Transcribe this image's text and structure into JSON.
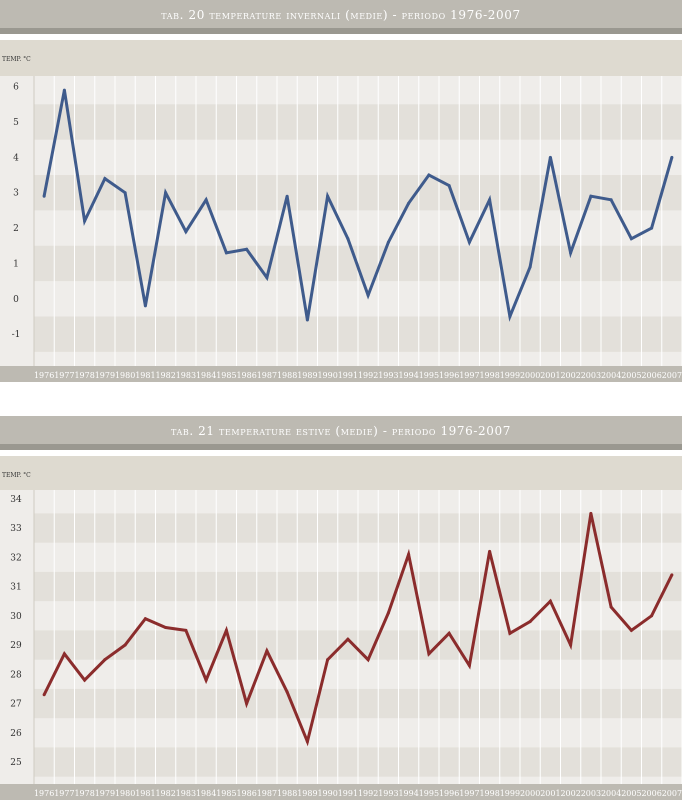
{
  "charts": [
    {
      "title": "TAB. 20  TEMPERATURE INVERNALI (MEDIE) - PERIODO 1976-2007",
      "unit_label": "TEMP. °C"
    },
    {
      "title": "TAB. 21  TEMPERATURE ESTIVE (MEDIE) - PERIODO 1976-2007",
      "unit_label": "TEMP. °C"
    }
  ],
  "colors": {
    "winter_line": "#3f5b8c",
    "summer_line": "#8b2c2c",
    "band_dark": "#e3e0da",
    "band_light": "#efedea",
    "grid": "#ffffff",
    "axis_bar": "#bdbab2"
  },
  "chart_data": [
    {
      "type": "line",
      "title": "TAB. 20  TEMPERATURE INVERNALI (MEDIE) - PERIODO 1976-2007",
      "ylabel": "TEMP. °C",
      "xlabel": "",
      "ylim": [
        -1.9,
        6.3
      ],
      "yticks": [
        6,
        5,
        4,
        3,
        2,
        1,
        0,
        -1
      ],
      "grid": true,
      "categories": [
        "1976",
        "1977",
        "1978",
        "1979",
        "1980",
        "1981",
        "1982",
        "1983",
        "1984",
        "1985",
        "1986",
        "1987",
        "1988",
        "1989",
        "1990",
        "1991",
        "1992",
        "1993",
        "1994",
        "1995",
        "1996",
        "1997",
        "1998",
        "1999",
        "2000",
        "2001",
        "2002",
        "2003",
        "2004",
        "2005",
        "2006",
        "2007"
      ],
      "series": [
        {
          "values": [
            2.9,
            5.9,
            2.2,
            3.4,
            3.0,
            -0.2,
            3.0,
            1.9,
            2.8,
            1.3,
            1.4,
            0.6,
            2.9,
            -0.6,
            2.9,
            1.7,
            0.1,
            1.6,
            2.7,
            3.5,
            3.2,
            1.6,
            2.8,
            -0.5,
            0.9,
            4.0,
            1.3,
            2.9,
            2.8,
            1.7,
            2.0,
            4.0
          ]
        }
      ]
    },
    {
      "type": "line",
      "title": "TAB. 21  TEMPERATURE ESTIVE (MEDIE) - PERIODO 1976-2007",
      "ylabel": "TEMP. °C",
      "xlabel": "",
      "ylim": [
        24.25,
        34.3
      ],
      "yticks": [
        34,
        33,
        32,
        31,
        30,
        29,
        28,
        27,
        26,
        25
      ],
      "grid": true,
      "categories": [
        "1976",
        "1977",
        "1978",
        "1979",
        "1980",
        "1981",
        "1982",
        "1983",
        "1984",
        "1985",
        "1986",
        "1987",
        "1988",
        "1989",
        "1990",
        "1991",
        "1992",
        "1993",
        "1994",
        "1995",
        "1996",
        "1997",
        "1998",
        "1999",
        "2000",
        "2001",
        "2002",
        "2003",
        "2004",
        "2005",
        "2006",
        "2007"
      ],
      "series": [
        {
          "values": [
            27.3,
            28.7,
            27.8,
            28.5,
            29.0,
            29.9,
            29.6,
            29.5,
            27.8,
            29.5,
            27.0,
            28.8,
            27.4,
            25.7,
            28.5,
            29.2,
            28.5,
            30.1,
            32.1,
            28.7,
            29.4,
            28.3,
            32.2,
            29.4,
            29.8,
            30.5,
            29.0,
            33.5,
            30.3,
            29.5,
            30.0,
            31.4
          ]
        }
      ]
    }
  ]
}
